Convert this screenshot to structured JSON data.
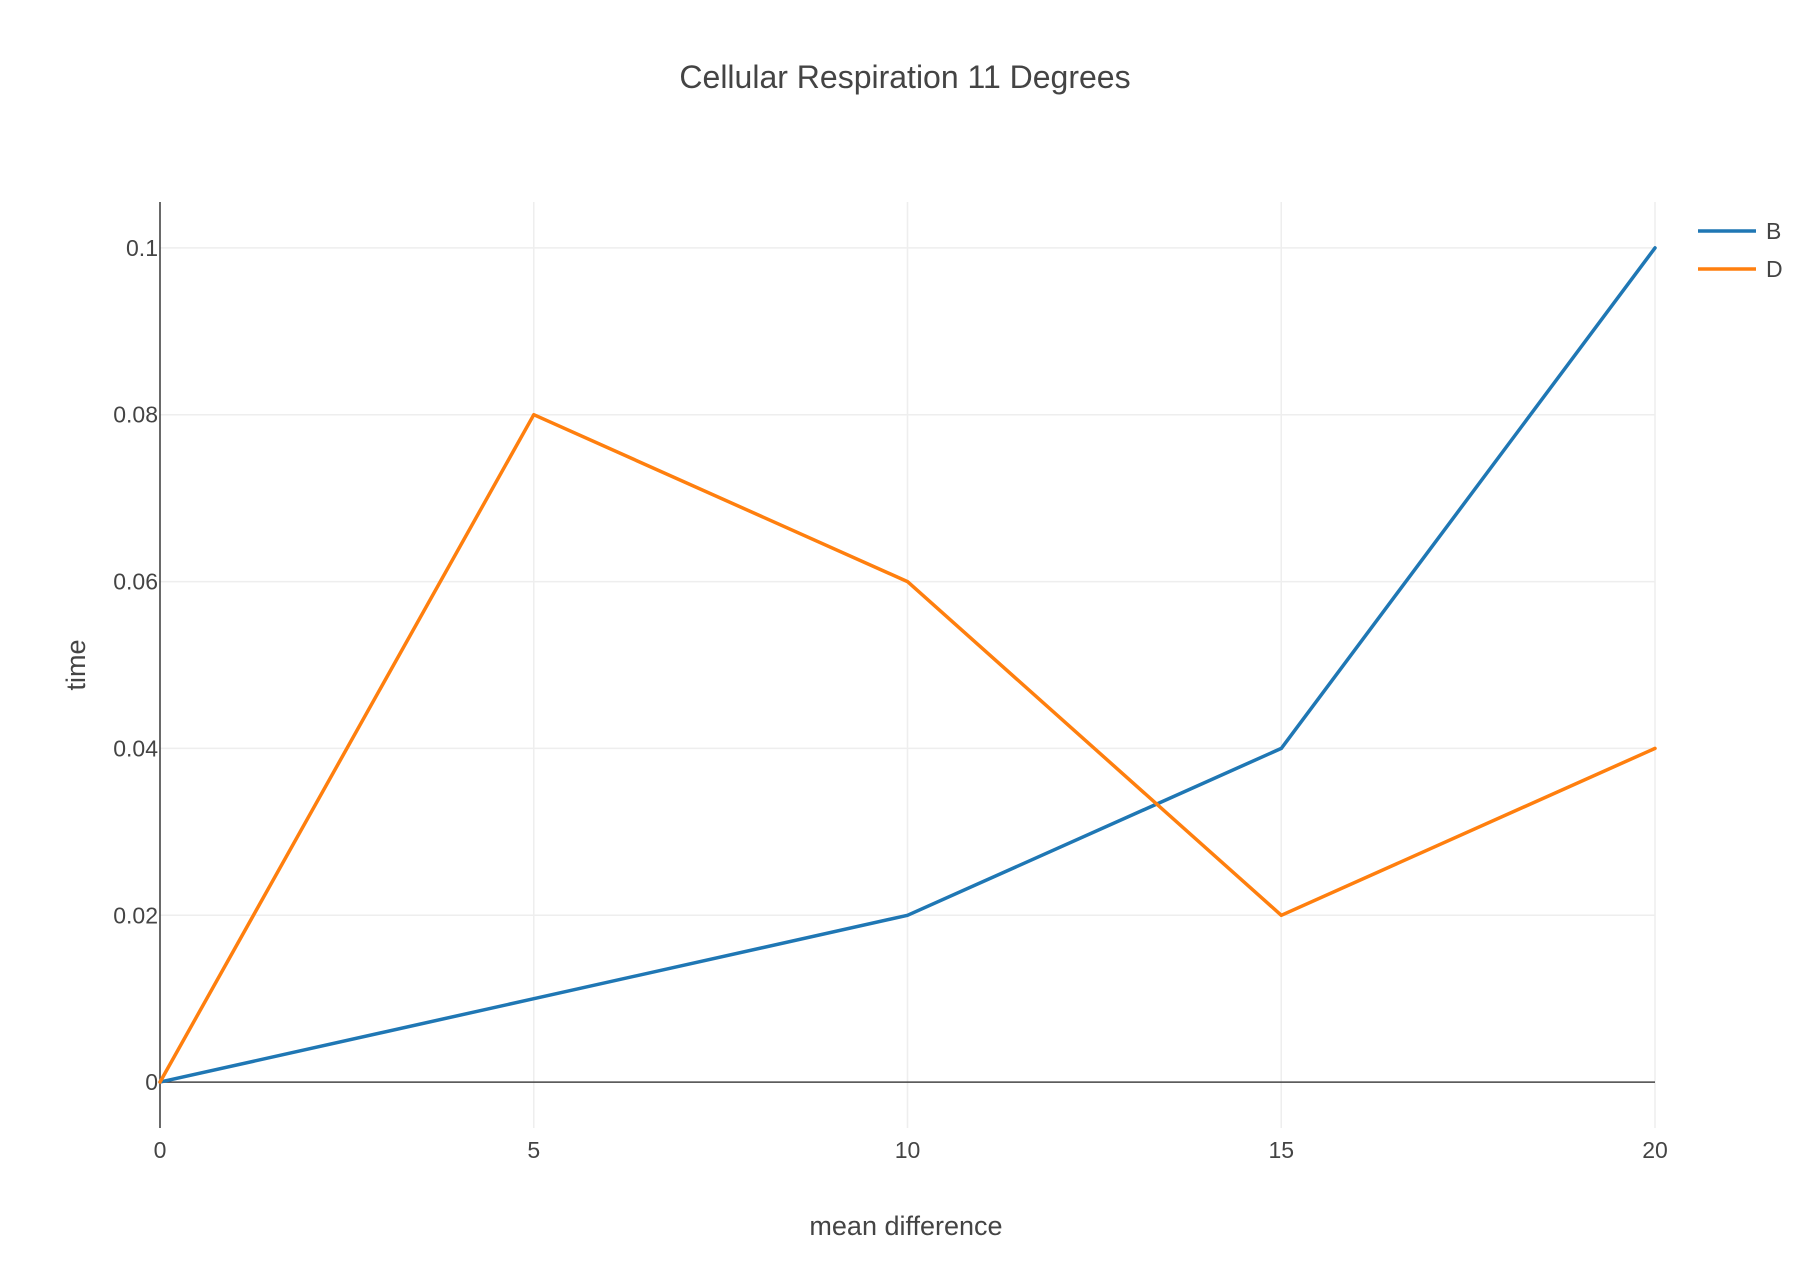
{
  "chart_data": {
    "type": "line",
    "title": "Cellular Respiration 11 Degrees",
    "xlabel": "mean difference",
    "ylabel": "time",
    "x": [
      0,
      5,
      10,
      15,
      20
    ],
    "xlim": [
      0,
      20
    ],
    "ylim": [
      -0.0055,
      0.1055
    ],
    "x_ticks": [
      0,
      5,
      10,
      15,
      20
    ],
    "x_tick_labels": [
      "0",
      "5",
      "10",
      "15",
      "20"
    ],
    "y_ticks": [
      0,
      0.02,
      0.04,
      0.06,
      0.08,
      0.1
    ],
    "y_tick_labels": [
      "0",
      "0.02",
      "0.04",
      "0.06",
      "0.08",
      "0.1"
    ],
    "grid": true,
    "legend_position": "top-right",
    "series": [
      {
        "name": "B",
        "color": "#1f77b4",
        "values": [
          0,
          0.01,
          0.02,
          0.04,
          0.1
        ]
      },
      {
        "name": "D",
        "color": "#ff7f0e",
        "values": [
          0,
          0.08,
          0.06,
          0.02,
          0.04
        ]
      }
    ],
    "colors": {
      "text": "#444444",
      "grid": "#eeeeee",
      "axis": "#444444"
    }
  }
}
